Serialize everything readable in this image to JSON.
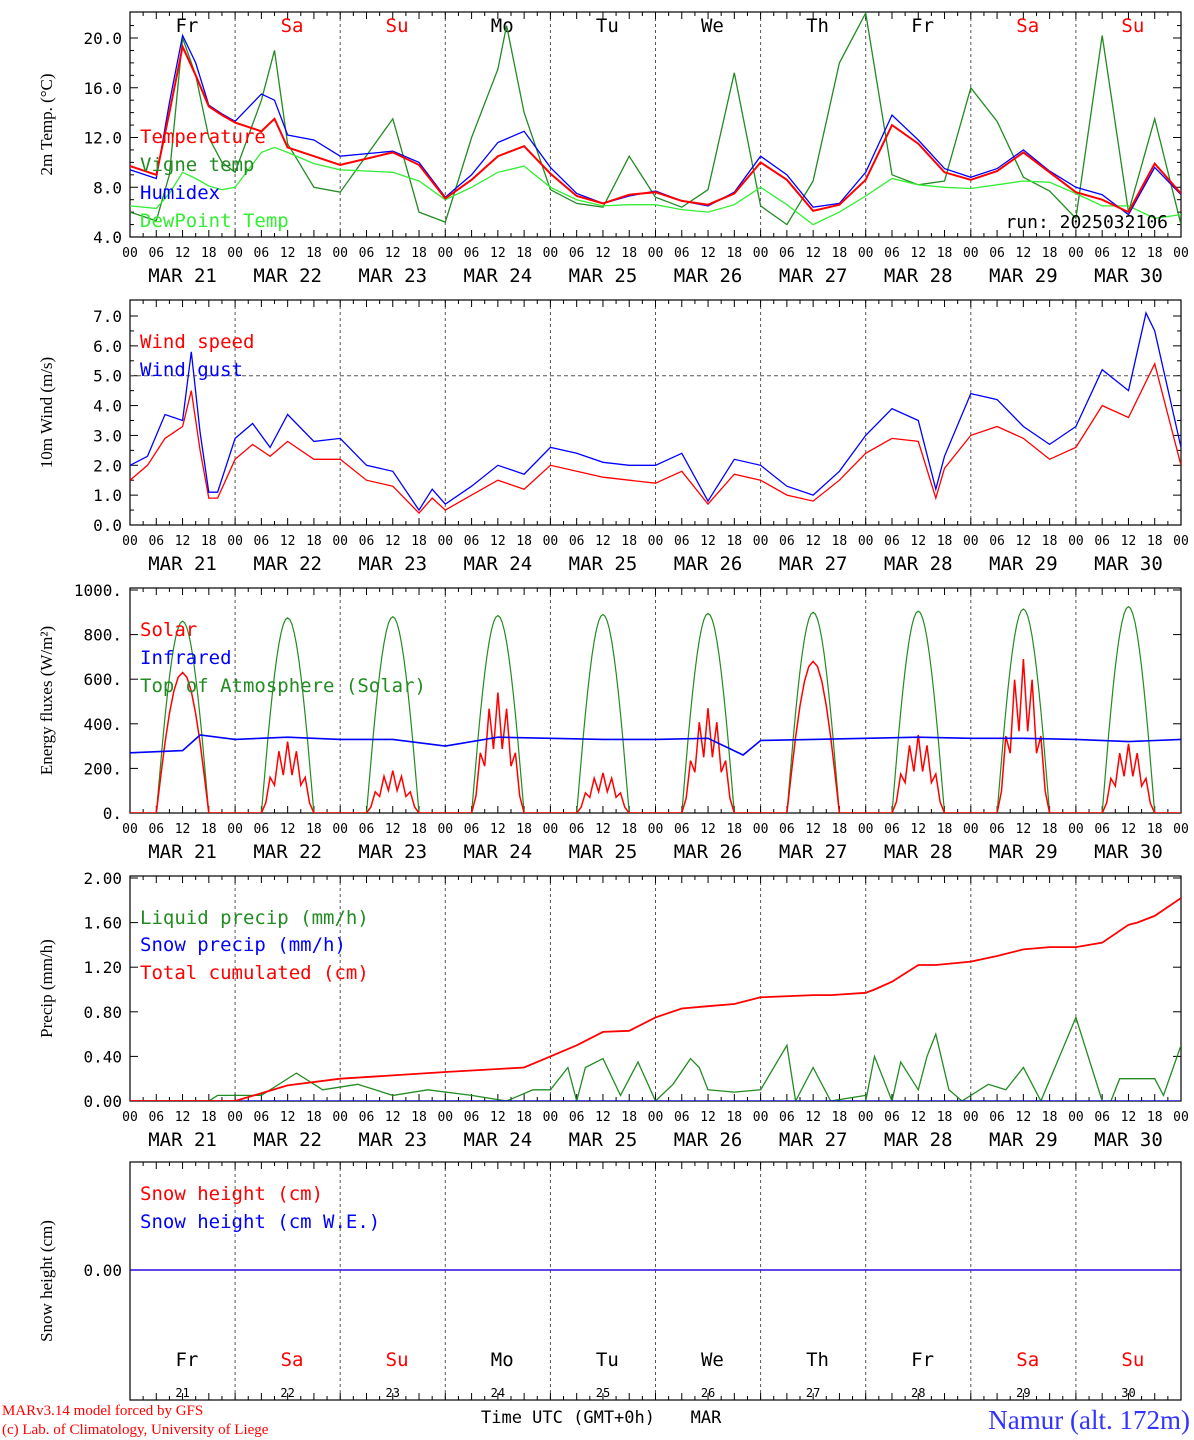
{
  "footer": {
    "model_line": "MARv3.14 model forced by GFS",
    "credit_line": "(c) Lab. of Climatology, University of Liege",
    "time_axis_label": "Time UTC (GMT+0h)",
    "month_label": "MAR",
    "station": "Namur (alt. 172m)"
  },
  "days": {
    "names": [
      "Fr",
      "Sa",
      "Su",
      "Mo",
      "Tu",
      "We",
      "Th",
      "Fr",
      "Sa",
      "Su"
    ],
    "numbers": [
      "21",
      "22",
      "23",
      "24",
      "25",
      "26",
      "27",
      "28",
      "29",
      "30"
    ],
    "dates": [
      "MAR 21",
      "MAR 22",
      "MAR 23",
      "MAR 24",
      "MAR 25",
      "MAR 26",
      "MAR 27",
      "MAR 28",
      "MAR 29",
      "MAR 30"
    ],
    "hour_ticks": [
      "00",
      "06",
      "12",
      "18"
    ],
    "last_tick": "00",
    "weekend_color": "#ff0000",
    "weekday_color": "#000000"
  },
  "colors": {
    "red": "#ff0000",
    "green": "#228b22",
    "blue": "#0000ff",
    "light_green": "#33ee33",
    "station": "#3333ff"
  },
  "chart_data": [
    {
      "type": "line",
      "ylabel": "2m Temp. (°C)",
      "yticks": [
        "4.0",
        "8.0",
        "12.0",
        "16.0",
        "20.0"
      ],
      "ylim": [
        4,
        22
      ],
      "annotation": "run: 2025032106",
      "x_unit": "hours from MAR 21 00 UTC",
      "series": [
        {
          "name": "Temperature",
          "color": "#ff0000",
          "x": [
            0,
            6,
            9,
            12,
            15,
            18,
            21,
            24,
            30,
            33,
            36,
            42,
            48,
            60,
            66,
            72,
            78,
            84,
            90,
            96,
            102,
            108,
            114,
            120,
            126,
            132,
            138,
            144,
            150,
            156,
            162,
            168,
            174,
            180,
            186,
            192,
            198,
            204,
            210,
            216,
            222,
            228,
            234,
            240
          ],
          "y": [
            9.7,
            9,
            14,
            19.3,
            17,
            14.5,
            13.8,
            13.2,
            12.5,
            13.5,
            11.2,
            10.5,
            9.8,
            10.8,
            9.8,
            7.1,
            8.6,
            10.5,
            11.3,
            9.1,
            7.3,
            6.7,
            7.4,
            7.6,
            6.9,
            6.6,
            7.5,
            10,
            8.6,
            6.1,
            6.6,
            8.6,
            13,
            11.5,
            9.2,
            8.6,
            9.3,
            10.8,
            9.2,
            7.6,
            7,
            6,
            9.9,
            7.5
          ]
        },
        {
          "name": "Vigne temp",
          "color": "#228b22",
          "x": [
            0,
            6,
            9,
            12,
            15,
            18,
            21,
            24,
            30,
            33,
            36,
            42,
            48,
            60,
            66,
            72,
            78,
            84,
            86,
            90,
            96,
            102,
            108,
            114,
            120,
            126,
            132,
            138,
            144,
            150,
            156,
            162,
            168,
            174,
            180,
            186,
            192,
            198,
            204,
            210,
            216,
            222,
            228,
            234,
            240
          ],
          "y": [
            6,
            5.3,
            9,
            20,
            17,
            12,
            10,
            9.2,
            15,
            19,
            11.5,
            8,
            7.6,
            13.5,
            6,
            5.2,
            12,
            17.5,
            21,
            14,
            7.8,
            6.7,
            6.4,
            10.5,
            7.2,
            6.4,
            7.8,
            17.2,
            6.5,
            5,
            8.5,
            18,
            22,
            9,
            8.2,
            8.5,
            16,
            13.3,
            8.8,
            7.7,
            5.5,
            20.2,
            6,
            13.5,
            5
          ]
        },
        {
          "name": "Humidex",
          "color": "#0000ff",
          "x": [
            0,
            6,
            9,
            12,
            15,
            18,
            21,
            24,
            30,
            33,
            36,
            42,
            48,
            60,
            66,
            72,
            78,
            84,
            90,
            96,
            102,
            108,
            114,
            120,
            126,
            132,
            138,
            144,
            150,
            156,
            162,
            168,
            174,
            180,
            186,
            192,
            198,
            204,
            210,
            216,
            222,
            228,
            234,
            240
          ],
          "y": [
            9.4,
            8.7,
            14.8,
            20.2,
            18,
            14.6,
            13.9,
            13.3,
            15.5,
            15,
            12.2,
            11.8,
            10.5,
            10.9,
            10,
            7.2,
            9,
            11.6,
            12.5,
            9.6,
            7.5,
            6.7,
            7.3,
            7.7,
            6.9,
            6.5,
            7.6,
            10.5,
            9,
            6.4,
            6.7,
            9.2,
            13.8,
            11.8,
            9.5,
            8.8,
            9.5,
            11,
            9.3,
            8,
            7.4,
            5.8,
            9.6,
            7.4
          ]
        },
        {
          "name": "DewPoint Temp",
          "color": "#33ee33",
          "x": [
            0,
            6,
            9,
            12,
            15,
            18,
            21,
            24,
            30,
            33,
            36,
            42,
            48,
            60,
            66,
            72,
            78,
            84,
            90,
            96,
            102,
            108,
            114,
            120,
            126,
            132,
            138,
            144,
            150,
            156,
            162,
            168,
            174,
            180,
            186,
            192,
            198,
            204,
            210,
            216,
            222,
            228,
            234,
            240
          ],
          "y": [
            6.5,
            6.3,
            7.5,
            9.2,
            8.7,
            8.1,
            7.8,
            8,
            10.8,
            11.2,
            10.8,
            9.9,
            9.4,
            9.2,
            8.5,
            7,
            8,
            9.2,
            9.7,
            8,
            7,
            6.5,
            6.6,
            6.6,
            6.2,
            6,
            6.6,
            8,
            6.6,
            5,
            6,
            7.3,
            8.7,
            8.2,
            8,
            7.9,
            8.2,
            8.5,
            8.4,
            7.5,
            6.5,
            6.5,
            5.5,
            5.8
          ]
        }
      ]
    },
    {
      "type": "line",
      "ylabel": "10m Wind (m/s)",
      "yticks": [
        "0.0",
        "1.0",
        "2.0",
        "3.0",
        "4.0",
        "5.0",
        "6.0",
        "7.0"
      ],
      "ylim": [
        0,
        7.5
      ],
      "reference_line": 5.0,
      "x_unit": "hours from MAR 21 00 UTC",
      "series": [
        {
          "name": "Wind speed",
          "color": "#ff0000",
          "x": [
            0,
            4,
            8,
            12,
            14,
            16,
            18,
            20,
            24,
            28,
            32,
            36,
            42,
            48,
            54,
            60,
            66,
            69,
            72,
            78,
            84,
            90,
            96,
            102,
            108,
            114,
            120,
            126,
            132,
            138,
            144,
            150,
            156,
            162,
            168,
            174,
            180,
            184,
            186,
            192,
            198,
            204,
            210,
            216,
            222,
            228,
            234,
            240
          ],
          "y": [
            1.5,
            2,
            2.9,
            3.3,
            4.5,
            2.5,
            0.9,
            0.9,
            2.2,
            2.7,
            2.3,
            2.8,
            2.2,
            2.2,
            1.5,
            1.3,
            0.4,
            0.9,
            0.5,
            1,
            1.5,
            1.2,
            2,
            1.8,
            1.6,
            1.5,
            1.4,
            1.8,
            0.7,
            1.7,
            1.5,
            1,
            0.8,
            1.5,
            2.4,
            2.9,
            2.8,
            0.9,
            1.9,
            3,
            3.3,
            2.9,
            2.2,
            2.6,
            4,
            3.6,
            5.4,
            2
          ]
        },
        {
          "name": "Wind gust",
          "color": "#0000ff",
          "x": [
            0,
            4,
            8,
            12,
            14,
            16,
            18,
            20,
            24,
            28,
            32,
            36,
            42,
            48,
            54,
            60,
            66,
            69,
            72,
            78,
            84,
            90,
            96,
            102,
            108,
            114,
            120,
            126,
            132,
            138,
            144,
            150,
            156,
            162,
            168,
            174,
            180,
            184,
            186,
            192,
            198,
            204,
            210,
            216,
            222,
            228,
            232,
            234,
            240
          ],
          "y": [
            2,
            2.3,
            3.7,
            3.5,
            5.8,
            3.1,
            1.1,
            1.1,
            2.9,
            3.4,
            2.6,
            3.7,
            2.8,
            2.9,
            2,
            1.8,
            0.5,
            1.2,
            0.7,
            1.3,
            2,
            1.7,
            2.6,
            2.4,
            2.1,
            2,
            2,
            2.4,
            0.8,
            2.2,
            2,
            1.3,
            1,
            1.8,
            3,
            3.9,
            3.5,
            1.2,
            2.3,
            4.4,
            4.2,
            3.3,
            2.7,
            3.3,
            5.2,
            4.5,
            7.1,
            6.5,
            2.6
          ]
        }
      ]
    },
    {
      "type": "line",
      "ylabel": "Energy fluxes (W/m²)",
      "yticks": [
        "0.",
        "200.",
        "400.",
        "600.",
        "800.",
        "1000."
      ],
      "ylim": [
        0,
        1000
      ],
      "x_unit": "hours from MAR 21 00 UTC",
      "daily_toa_peak": [
        860,
        875,
        880,
        885,
        890,
        895,
        900,
        905,
        915,
        925
      ],
      "daily_solar_peak": [
        630,
        320,
        190,
        540,
        180,
        470,
        680,
        350,
        690,
        310
      ],
      "series": [
        {
          "name": "Solar",
          "color": "#ff0000"
        },
        {
          "name": "Infrared",
          "color": "#0000ff",
          "x": [
            0,
            12,
            16,
            24,
            36,
            48,
            60,
            72,
            84,
            96,
            108,
            120,
            132,
            140,
            144,
            156,
            168,
            180,
            192,
            204,
            216,
            228,
            240
          ],
          "y": [
            270,
            280,
            350,
            330,
            340,
            330,
            330,
            300,
            340,
            335,
            330,
            330,
            335,
            260,
            325,
            330,
            335,
            340,
            335,
            335,
            330,
            320,
            330
          ]
        },
        {
          "name": "Top of Atmosphere (Solar)",
          "color": "#228b22"
        }
      ]
    },
    {
      "type": "line",
      "ylabel": "Precip (mm/h)",
      "yticks": [
        "0.00",
        "0.40",
        "0.80",
        "1.20",
        "1.60",
        "2.00"
      ],
      "ylim": [
        0,
        2
      ],
      "x_unit": "hours from MAR 21 00 UTC",
      "series": [
        {
          "name": "Liquid precip (mm/h)",
          "color": "#228b22",
          "x": [
            0,
            18,
            20,
            30,
            38,
            44,
            52,
            60,
            68,
            78,
            86,
            92,
            96,
            100,
            102,
            104,
            108,
            112,
            116,
            120,
            124,
            128,
            130,
            132,
            138,
            144,
            150,
            152,
            156,
            160,
            168,
            168,
            170,
            174,
            176,
            180,
            182,
            184,
            187,
            190,
            196,
            200,
            204,
            208,
            216,
            222,
            224,
            226,
            234,
            236,
            240
          ],
          "y": [
            0,
            0,
            0.05,
            0.05,
            0.25,
            0.1,
            0.15,
            0.05,
            0.1,
            0.05,
            0,
            0.1,
            0.1,
            0.3,
            0,
            0.3,
            0.38,
            0.05,
            0.35,
            0,
            0.15,
            0.38,
            0.3,
            0.1,
            0.08,
            0.1,
            0.5,
            0,
            0.3,
            0,
            0.05,
            0,
            0.4,
            0,
            0.35,
            0.1,
            0.4,
            0.6,
            0.1,
            0,
            0.15,
            0.1,
            0.3,
            0,
            0.75,
            0,
            0,
            0.2,
            0.2,
            0.05,
            0.5
          ]
        },
        {
          "name": "Snow precip (mm/h)",
          "color": "#0000ff",
          "x": [
            0,
            240
          ],
          "y": [
            0,
            0
          ]
        },
        {
          "name": "Total cumulated (cm)",
          "color": "#ff0000",
          "x": [
            0,
            24,
            36,
            48,
            60,
            72,
            90,
            96,
            102,
            108,
            114,
            120,
            126,
            132,
            138,
            144,
            156,
            160,
            168,
            170,
            174,
            180,
            184,
            192,
            198,
            204,
            210,
            216,
            222,
            228,
            230,
            234,
            240
          ],
          "y": [
            0,
            0,
            0.14,
            0.2,
            0.23,
            0.26,
            0.3,
            0.4,
            0.5,
            0.62,
            0.63,
            0.75,
            0.83,
            0.85,
            0.87,
            0.93,
            0.95,
            0.95,
            0.97,
            1.0,
            1.07,
            1.22,
            1.22,
            1.25,
            1.3,
            1.36,
            1.38,
            1.38,
            1.42,
            1.58,
            1.6,
            1.66,
            1.82
          ]
        }
      ]
    },
    {
      "type": "line",
      "ylabel": "Snow height (cm)",
      "yticks": [
        "0.00"
      ],
      "ylim": [
        -0.5,
        0.5
      ],
      "x_unit": "hours from MAR 21 00 UTC",
      "series": [
        {
          "name": "Snow height (cm)",
          "color": "#ff0000",
          "x": [
            0,
            240
          ],
          "y": [
            0,
            0
          ]
        },
        {
          "name": "Snow height (cm W.E.)",
          "color": "#0000ff",
          "x": [
            0,
            240
          ],
          "y": [
            0,
            0
          ]
        }
      ]
    }
  ]
}
